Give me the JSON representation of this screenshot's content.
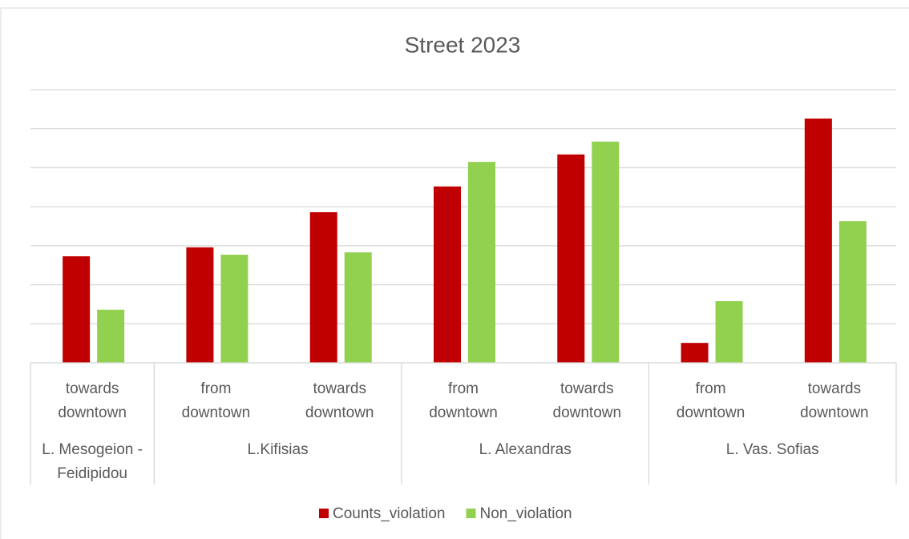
{
  "chart_data": {
    "type": "bar",
    "title": "Street 2023",
    "groups": [
      {
        "label": "L. Mesogeion - Feidipidou",
        "categories": [
          "towards downtown"
        ]
      },
      {
        "label": "L.Kifisias",
        "categories": [
          "from downtown",
          "towards downtown"
        ]
      },
      {
        "label": "L. Alexandras",
        "categories": [
          "from downtown",
          "towards downtown"
        ]
      },
      {
        "label": "L. Vas. Sofias",
        "categories": [
          "from downtown",
          "towards downtown"
        ]
      }
    ],
    "series": [
      {
        "name": "Counts_violation",
        "color": "#c00000",
        "values": [
          2.73,
          2.96,
          3.86,
          4.52,
          5.34,
          0.51,
          6.26
        ]
      },
      {
        "name": "Non_violation",
        "color": "#92d050",
        "values": [
          1.36,
          2.77,
          2.83,
          5.15,
          5.67,
          1.58,
          3.63
        ]
      }
    ],
    "ylim": [
      0,
      7
    ],
    "yticks": [
      0,
      1,
      2,
      3,
      4,
      5,
      6,
      7
    ],
    "grid": true,
    "legend": "bottom"
  }
}
